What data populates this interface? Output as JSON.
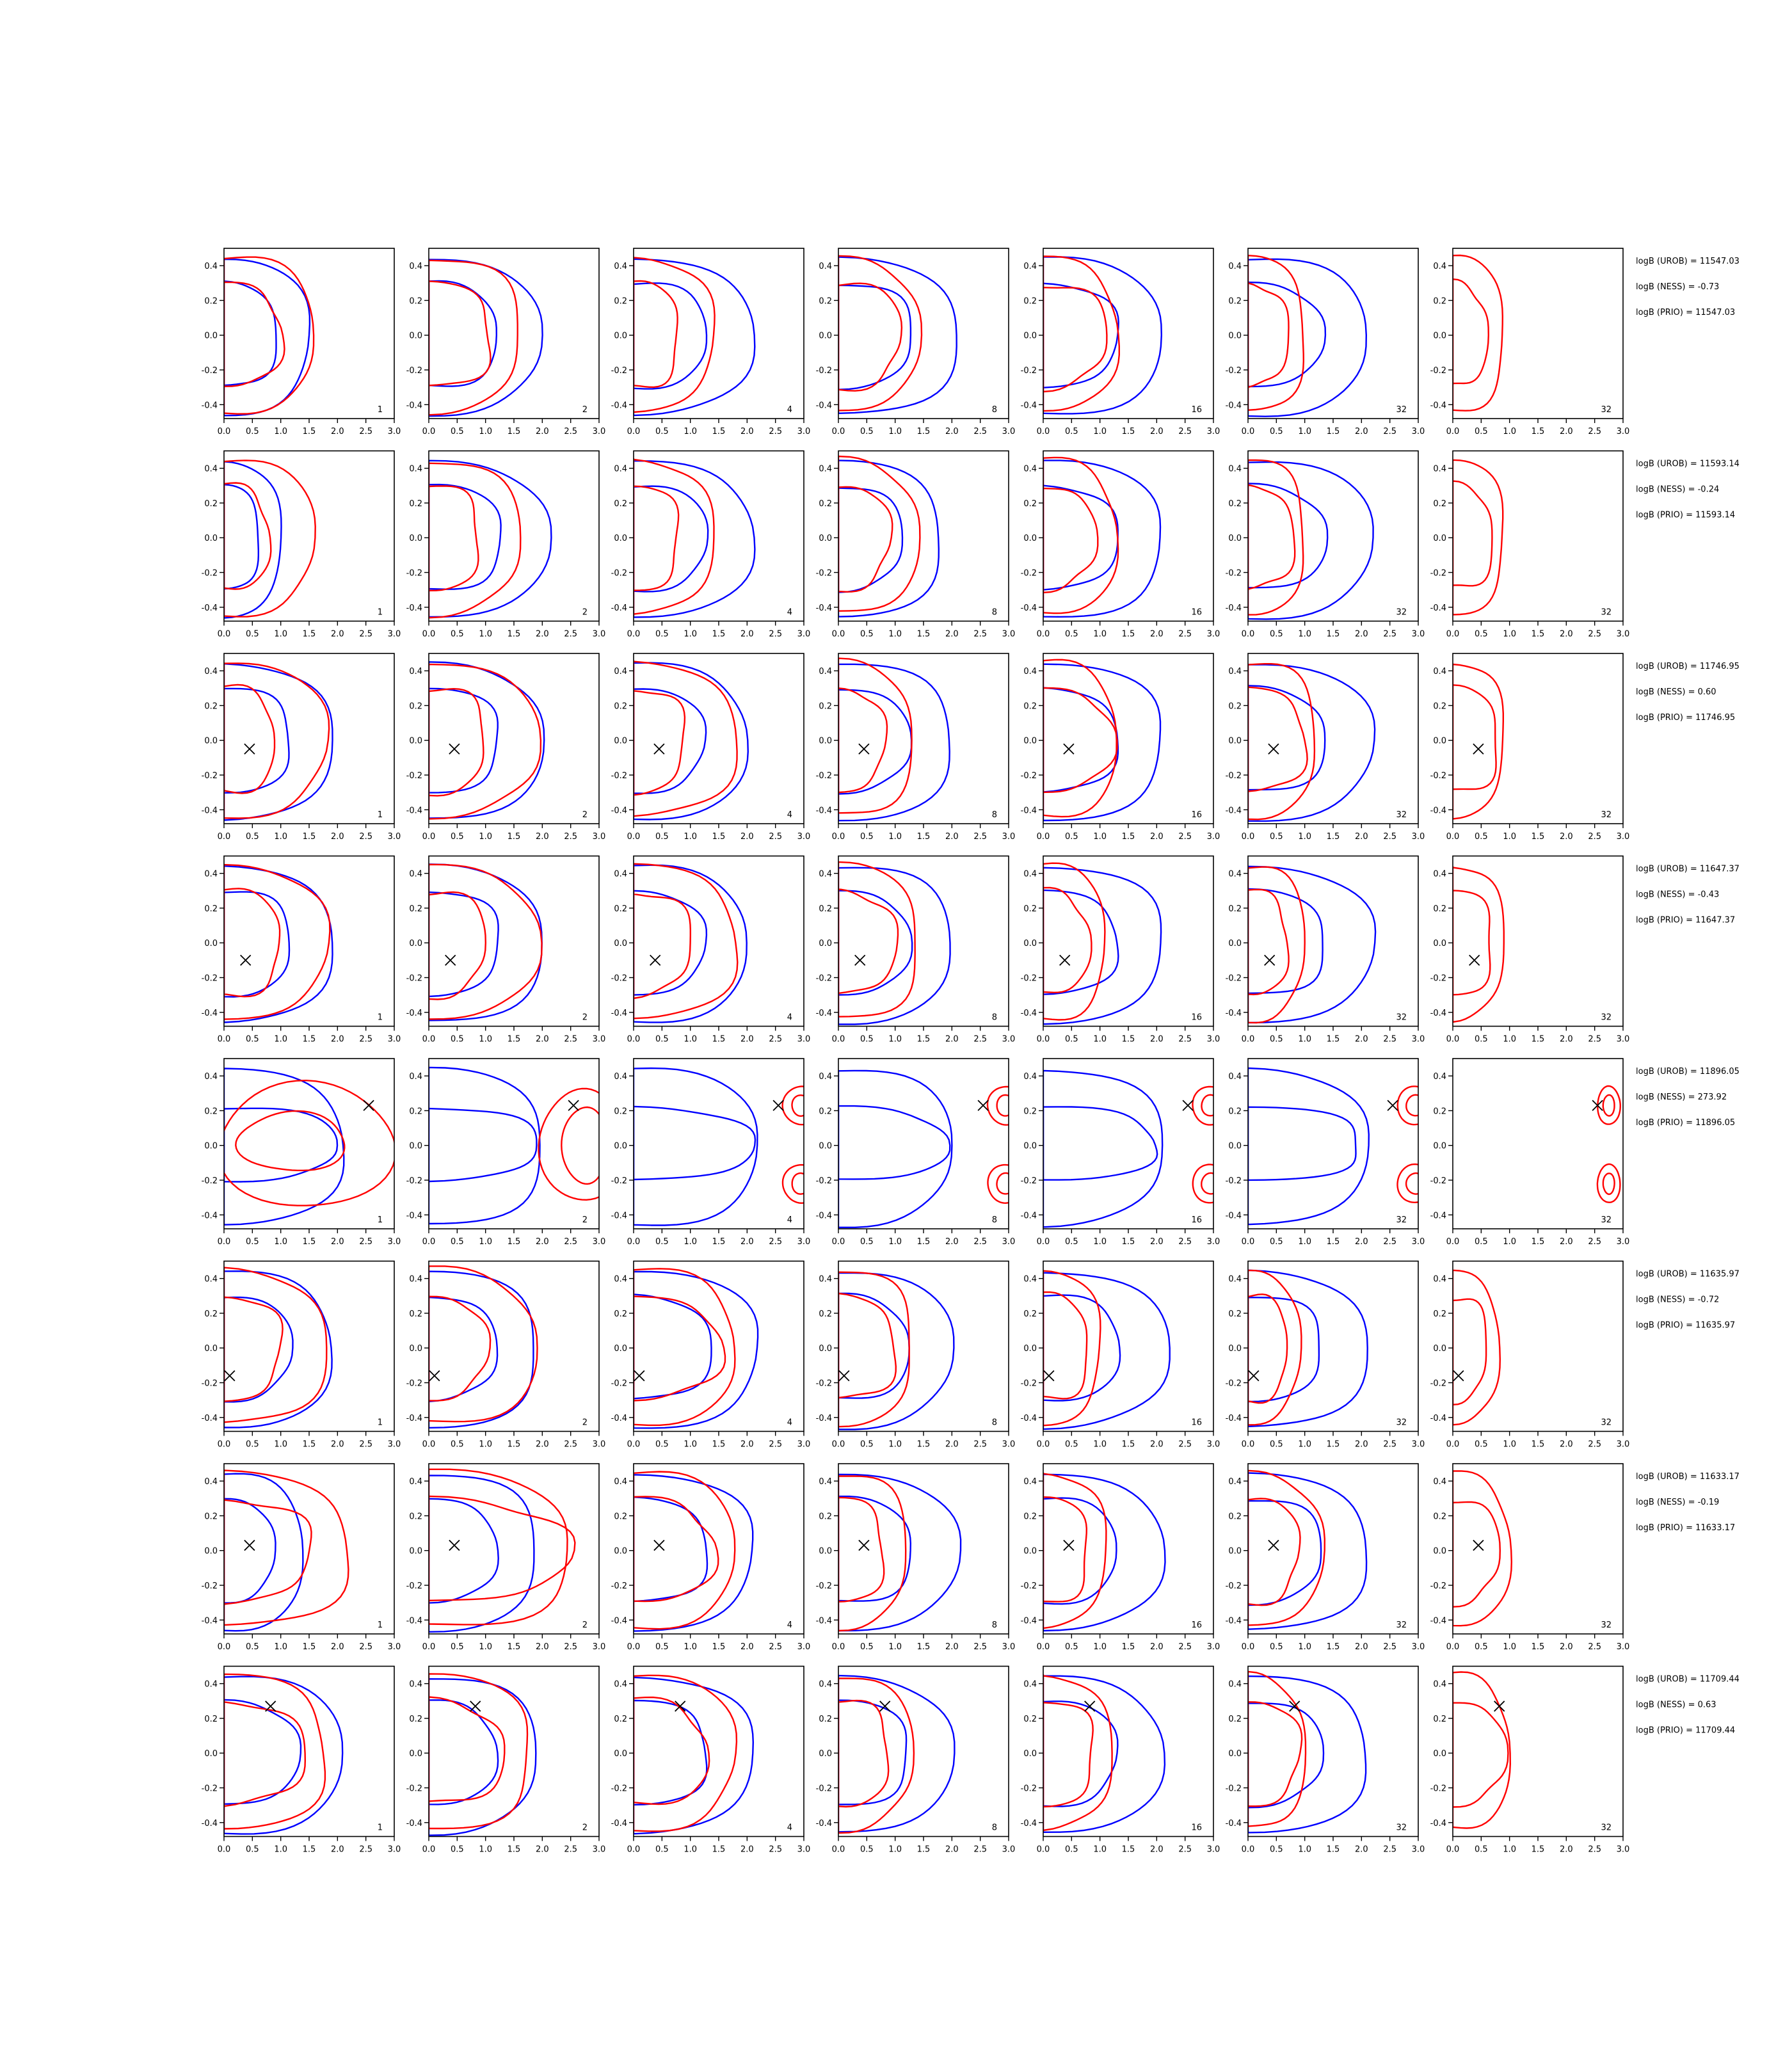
{
  "figure": {
    "grid_rows": 8,
    "grid_cols": 7,
    "colors": {
      "blue": "#0000ff",
      "red": "#ff0000",
      "axis": "#000000",
      "marker": "#000000"
    }
  },
  "chart_data": {
    "type": "contour",
    "xlim": [
      0.0,
      3.0
    ],
    "ylim": [
      -0.48,
      0.5
    ],
    "x_ticks": [
      "0.0",
      "0.5",
      "1.0",
      "1.5",
      "2.0",
      "2.5",
      "3.0"
    ],
    "y_ticks": [
      "-0.4",
      "-0.2",
      "0.0",
      "0.2",
      "0.4"
    ],
    "column_labels": [
      "1",
      "2",
      "4",
      "8",
      "16",
      "32",
      "32"
    ],
    "rows": [
      {
        "marker": null,
        "annotations": [
          "logB (UROB) = 11547.03",
          "logB (NESS) = -0.73",
          "logB (PRIO) = 11547.03"
        ],
        "blue_extent": [
          1.5,
          1.95,
          2.1,
          2.1,
          2.1,
          2.1
        ],
        "red_extent": [
          1.6,
          1.6,
          1.4,
          1.4,
          1.3,
          1.0,
          0.9
        ],
        "red_inner": [
          1.0,
          1.1,
          0.8,
          1.1,
          1.1,
          0.7,
          0.6
        ]
      },
      {
        "marker": null,
        "annotations": [
          "logB (UROB) = 11593.14",
          "logB (NESS) = -0.24",
          "logB (PRIO) = 11593.14"
        ],
        "blue_extent": [
          1.0,
          2.1,
          2.1,
          1.8,
          2.1,
          2.2
        ],
        "red_extent": [
          1.6,
          1.6,
          1.4,
          1.4,
          1.3,
          1.0,
          0.9
        ],
        "red_inner": [
          0.8,
          0.9,
          0.8,
          0.9,
          0.9,
          0.8,
          0.7
        ]
      },
      {
        "marker": [
          0.45,
          -0.05
        ],
        "annotations": [
          "logB (UROB) = 11746.95",
          "logB (NESS) = 0.60",
          "logB (PRIO) = 11746.95"
        ],
        "blue_extent": [
          1.9,
          2.0,
          2.0,
          2.0,
          2.1,
          2.2
        ],
        "red_extent": [
          1.8,
          1.9,
          1.8,
          1.3,
          1.3,
          1.2,
          0.9
        ],
        "red_inner": [
          0.9,
          1.0,
          0.9,
          0.8,
          1.2,
          1.0,
          0.8
        ]
      },
      {
        "marker": [
          0.38,
          -0.1
        ],
        "annotations": [
          "logB (UROB) = 11647.37",
          "logB (NESS) = -0.43",
          "logB (PRIO) = 11647.37"
        ],
        "blue_extent": [
          1.9,
          2.0,
          2.0,
          2.0,
          2.1,
          2.2
        ],
        "red_extent": [
          1.8,
          1.9,
          1.8,
          1.4,
          1.1,
          1.0,
          0.9
        ],
        "red_inner": [
          1.0,
          1.0,
          1.0,
          1.0,
          0.8,
          0.7,
          0.7
        ]
      },
      {
        "marker": [
          2.55,
          0.23
        ],
        "annotations": [
          "logB (UROB) = 11896.05",
          "logB (NESS) = 273.92",
          "logB (PRIO) = 11896.05"
        ],
        "blue_extent": [
          2.1,
          2.0,
          2.2,
          2.0,
          2.1,
          2.1
        ],
        "red_extent": [
          2.9,
          3.0,
          3.0,
          3.0,
          3.0,
          3.0,
          3.0
        ],
        "red_inner": [
          2.1,
          2.9,
          3.0,
          3.0,
          3.0,
          3.0,
          3.0
        ]
      },
      {
        "marker": [
          0.1,
          -0.16
        ],
        "annotations": [
          "logB (UROB) = 11635.97",
          "logB (NESS) = -0.72",
          "logB (PRIO) = 11635.97"
        ],
        "blue_extent": [
          1.9,
          1.9,
          2.2,
          2.0,
          2.2,
          2.1
        ],
        "red_extent": [
          1.8,
          1.9,
          1.8,
          1.3,
          1.0,
          0.9,
          0.8
        ],
        "red_inner": [
          1.0,
          1.0,
          1.5,
          1.0,
          0.8,
          0.7,
          0.6
        ]
      },
      {
        "marker": [
          0.45,
          0.03
        ],
        "annotations": [
          "logB (UROB) = 11633.17",
          "logB (NESS) = -0.19",
          "logB (PRIO) = 11633.17"
        ],
        "blue_extent": [
          1.4,
          1.9,
          2.1,
          2.1,
          2.1,
          2.1
        ],
        "red_extent": [
          2.2,
          2.5,
          1.8,
          1.2,
          1.1,
          1.3,
          1.0
        ],
        "red_inner": [
          1.5,
          2.4,
          1.4,
          0.8,
          0.8,
          0.9,
          0.8
        ]
      },
      {
        "marker": [
          0.82,
          0.27
        ],
        "annotations": [
          "logB (UROB) = 11709.44",
          "logB (NESS) = 0.63",
          "logB (PRIO) = 11709.44"
        ],
        "blue_extent": [
          2.1,
          1.9,
          2.1,
          2.0,
          2.1,
          2.1
        ],
        "red_extent": [
          1.8,
          1.8,
          1.8,
          1.3,
          1.2,
          1.0,
          1.0
        ],
        "red_inner": [
          1.4,
          1.3,
          1.3,
          0.9,
          0.9,
          0.9,
          0.9
        ]
      }
    ]
  }
}
